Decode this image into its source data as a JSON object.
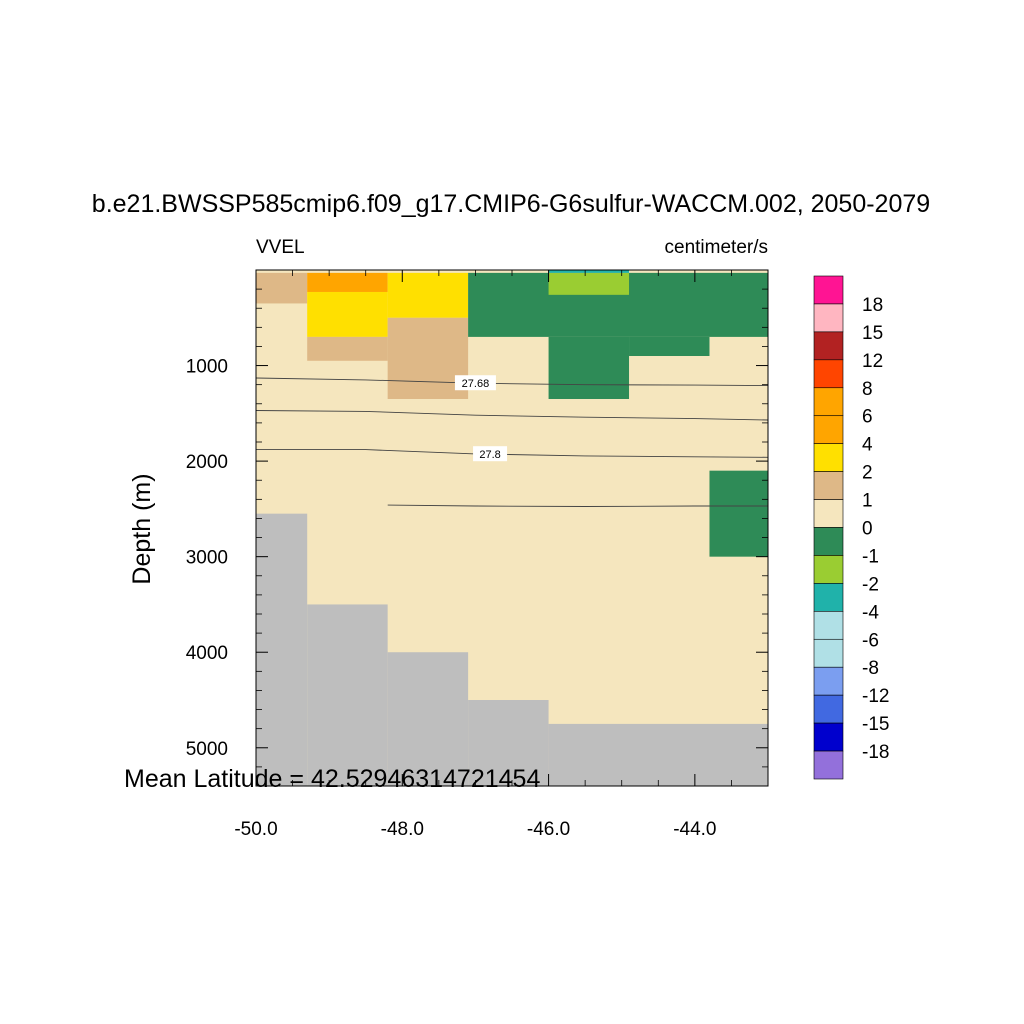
{
  "title": "b.e21.BWSSP585cmip6.f09_g17.CMIP6-G6sulfur-WACCM.002, 2050-2079",
  "left_label": "VVEL",
  "right_label": "centimeter/s",
  "footer": "Mean Latitude = 42.52946314721454",
  "chart_data": {
    "type": "heatmap",
    "xlabel": "",
    "ylabel": "Depth (m)",
    "xlim": [
      -50.0,
      -43.0
    ],
    "ylim": [
      5400,
      0
    ],
    "xticks": [
      "-50.0",
      "-48.0",
      "-46.0",
      "-44.0"
    ],
    "xtick_values": [
      -50,
      -48,
      -46,
      -44
    ],
    "yticks": [
      "1000",
      "2000",
      "3000",
      "4000",
      "5000"
    ],
    "ytick_values": [
      1000,
      2000,
      3000,
      4000,
      5000
    ],
    "colorbar": {
      "levels": [
        "18",
        "15",
        "12",
        "8",
        "6",
        "4",
        "2",
        "1",
        "0",
        "-1",
        "-2",
        "-4",
        "-6",
        "-8",
        "-12",
        "-15",
        "-18"
      ],
      "colors": [
        "#ff1493",
        "#ffb6c1",
        "#b22222",
        "#ff4500",
        "#ffa500",
        "#ffa500",
        "#ffe000",
        "#deb887",
        "#f5e6be",
        "#2e8b57",
        "#9acd32",
        "#20b2aa",
        "#b0e0e6",
        "#b0e0e6",
        "#7b9ef0",
        "#4169e1",
        "#0000cd",
        "#9370db"
      ]
    },
    "colors": {
      "land": "#bebebe",
      "c0_1": "#f5e6be",
      "c1_2": "#deb887",
      "c2_4": "#ffe000",
      "c4_6": "#ffa500",
      "cm1_0": "#2e8b57",
      "cm2_m1": "#9acd32",
      "cm4_m2": "#20b2aa"
    },
    "cells": [
      {
        "x0": -50.0,
        "x1": -43.0,
        "d0": 0,
        "d1": 5400,
        "value": "0 to 1"
      },
      {
        "x0": -50.0,
        "x1": -49.3,
        "d0": 30,
        "d1": 350,
        "value": "1 to 2"
      },
      {
        "x0": -49.3,
        "x1": -48.2,
        "d0": 30,
        "d1": 230,
        "value": "4 to 6"
      },
      {
        "x0": -49.3,
        "x1": -48.2,
        "d0": 230,
        "d1": 700,
        "value": "2 to 4"
      },
      {
        "x0": -48.2,
        "x1": -47.1,
        "d0": 30,
        "d1": 500,
        "value": "2 to 4"
      },
      {
        "x0": -49.3,
        "x1": -48.2,
        "d0": 700,
        "d1": 950,
        "value": "1 to 2"
      },
      {
        "x0": -48.2,
        "x1": -47.1,
        "d0": 500,
        "d1": 1350,
        "value": "1 to 2"
      },
      {
        "x0": -47.1,
        "x1": -43.0,
        "d0": 30,
        "d1": 700,
        "value": "-1 to 0"
      },
      {
        "x0": -46.0,
        "x1": -44.9,
        "d0": 700,
        "d1": 1350,
        "value": "-1 to 0"
      },
      {
        "x0": -44.9,
        "x1": -43.8,
        "d0": 700,
        "d1": 900,
        "value": "-1 to 0"
      },
      {
        "x0": -46.0,
        "x1": -44.9,
        "d0": 30,
        "d1": 260,
        "value": "-2 to -1"
      },
      {
        "x0": -46.0,
        "x1": -44.9,
        "d0": 0,
        "d1": 30,
        "value": "-4 to -2"
      },
      {
        "x0": -43.8,
        "x1": -43.0,
        "d0": 2100,
        "d1": 3000,
        "value": "-1 to 0"
      },
      {
        "x0": -50.0,
        "x1": -49.3,
        "d0": 2550,
        "d1": 5400,
        "value": "land"
      },
      {
        "x0": -49.3,
        "x1": -48.2,
        "d0": 3500,
        "d1": 5400,
        "value": "land"
      },
      {
        "x0": -48.2,
        "x1": -47.1,
        "d0": 4000,
        "d1": 5400,
        "value": "land"
      },
      {
        "x0": -47.1,
        "x1": -46.0,
        "d0": 4500,
        "d1": 5400,
        "value": "land"
      },
      {
        "x0": -46.0,
        "x1": -43.0,
        "d0": 4750,
        "d1": 5400,
        "value": "land"
      }
    ],
    "contours": [
      {
        "label": "27.68",
        "label_x": -47.0,
        "points": [
          [
            -50.0,
            1130
          ],
          [
            -48.5,
            1150
          ],
          [
            -47.0,
            1185
          ],
          [
            -45.5,
            1200
          ],
          [
            -44.0,
            1205
          ],
          [
            -43.0,
            1210
          ]
        ]
      },
      {
        "label": "",
        "label_x": null,
        "points": [
          [
            -50.0,
            1470
          ],
          [
            -48.5,
            1480
          ],
          [
            -47.0,
            1520
          ],
          [
            -45.5,
            1540
          ],
          [
            -44.0,
            1555
          ],
          [
            -43.0,
            1570
          ]
        ]
      },
      {
        "label": "27.8",
        "label_x": -46.8,
        "points": [
          [
            -50.0,
            1880
          ],
          [
            -48.5,
            1880
          ],
          [
            -47.0,
            1925
          ],
          [
            -45.5,
            1945
          ],
          [
            -44.0,
            1955
          ],
          [
            -43.0,
            1960
          ]
        ]
      },
      {
        "label": "",
        "label_x": null,
        "points": [
          [
            -48.2,
            2460
          ],
          [
            -47.0,
            2470
          ],
          [
            -45.5,
            2475
          ],
          [
            -44.0,
            2470
          ],
          [
            -43.0,
            2470
          ]
        ]
      }
    ]
  }
}
